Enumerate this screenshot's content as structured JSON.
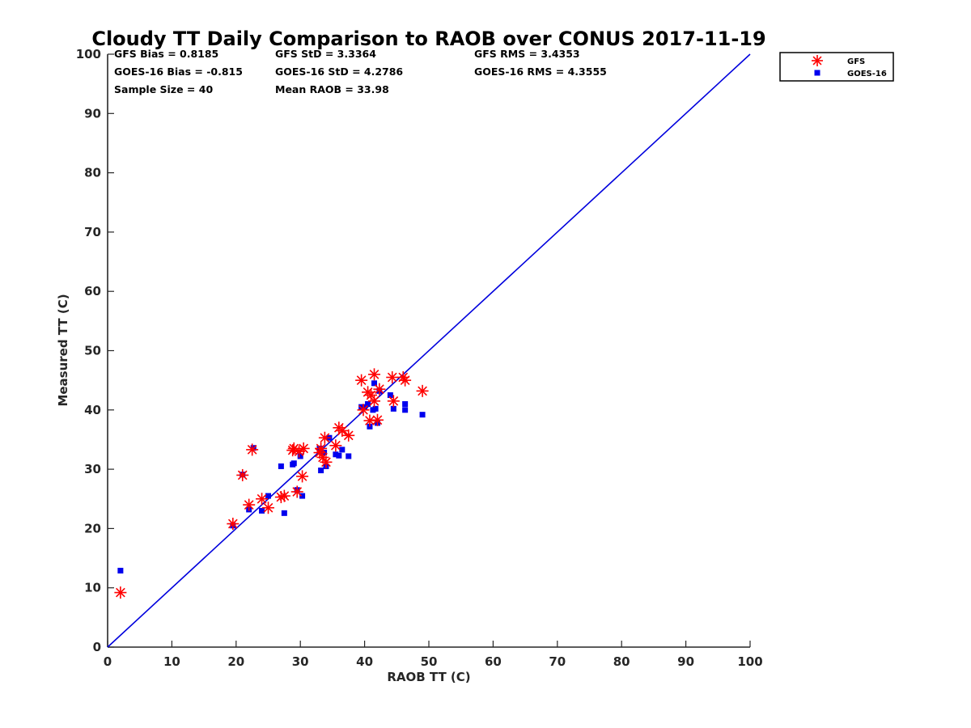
{
  "chart_data": {
    "type": "scatter",
    "title": "Cloudy TT Daily Comparison to RAOB over CONUS 2017-11-19",
    "xlabel": "RAOB TT (C)",
    "ylabel": "Measured TT (C)",
    "xlim": [
      0,
      100
    ],
    "ylim": [
      0,
      100
    ],
    "xticks": [
      "0",
      "10",
      "20",
      "30",
      "40",
      "50",
      "60",
      "70",
      "80",
      "90",
      "100"
    ],
    "yticks": [
      "0",
      "10",
      "20",
      "30",
      "40",
      "50",
      "60",
      "70",
      "80",
      "90",
      "100"
    ],
    "grid": false,
    "legend_position": "outside-top-right",
    "stats": [
      [
        "GFS Bias = 0.8185",
        "GFS StD = 3.3364",
        "GFS RMS = 3.4353"
      ],
      [
        "GOES-16 Bias = -0.815",
        "GOES-16 StD = 4.2786",
        "GOES-16 RMS = 4.3555"
      ],
      [
        "Sample Size = 40",
        "Mean RAOB = 33.98",
        ""
      ]
    ],
    "reference_line": {
      "x": [
        0,
        100
      ],
      "y": [
        0,
        100
      ],
      "color": "#0000dd"
    },
    "series": [
      {
        "name": "GFS",
        "marker": "asterisk",
        "color": "#ff0000",
        "x": [
          2.0,
          19.5,
          21.0,
          22.0,
          22.5,
          24.0,
          25.0,
          27.0,
          27.5,
          28.8,
          29.0,
          29.5,
          29.8,
          30.3,
          30.5,
          33.0,
          33.2,
          33.5,
          33.8,
          34.0,
          35.5,
          36.0,
          36.5,
          37.5,
          39.5,
          39.8,
          40.5,
          40.8,
          41.0,
          41.5,
          41.5,
          42.0,
          42.3,
          44.3,
          44.5,
          46.0,
          46.3,
          49.0
        ],
        "y": [
          9.2,
          20.8,
          29.0,
          24.0,
          33.3,
          25.0,
          23.5,
          25.3,
          25.5,
          33.2,
          33.5,
          26.2,
          33.0,
          28.8,
          33.5,
          32.8,
          33.5,
          32.0,
          35.3,
          31.2,
          34.0,
          37.0,
          36.5,
          35.7,
          45.0,
          40.0,
          43.0,
          38.2,
          42.5,
          46.0,
          41.5,
          38.3,
          43.5,
          45.5,
          41.5,
          45.5,
          45.0,
          43.2
        ]
      },
      {
        "name": "GOES-16",
        "marker": "square",
        "color": "#0000ee",
        "x": [
          2.0,
          19.5,
          21.0,
          22.0,
          22.7,
          24.0,
          25.0,
          27.0,
          27.5,
          28.8,
          29.0,
          29.5,
          30.0,
          30.3,
          33.0,
          33.2,
          33.7,
          34.0,
          34.5,
          35.5,
          36.0,
          36.5,
          37.5,
          39.5,
          40.0,
          40.5,
          40.8,
          41.3,
          41.5,
          41.7,
          42.0,
          42.3,
          44.0,
          44.5,
          46.3,
          46.3,
          49.0
        ],
        "y": [
          12.9,
          20.5,
          29.1,
          23.2,
          33.6,
          23.0,
          25.5,
          30.5,
          22.6,
          30.8,
          31.0,
          26.5,
          32.2,
          25.5,
          33.5,
          29.8,
          32.8,
          30.5,
          35.3,
          32.5,
          32.3,
          33.3,
          32.2,
          40.5,
          40.5,
          41.0,
          37.2,
          40.0,
          44.5,
          40.2,
          37.8,
          43.2,
          42.5,
          40.2,
          40.0,
          41.0,
          39.2
        ]
      }
    ]
  }
}
